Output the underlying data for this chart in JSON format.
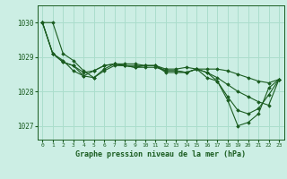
{
  "title": "Graphe pression niveau de la mer (hPa)",
  "background_color": "#cceee4",
  "grid_color": "#aaddcc",
  "line_color": "#1a5c20",
  "xlim": [
    -0.5,
    23.5
  ],
  "ylim": [
    1026.6,
    1030.5
  ],
  "yticks": [
    1027,
    1028,
    1029,
    1030
  ],
  "xticks": [
    0,
    1,
    2,
    3,
    4,
    5,
    6,
    7,
    8,
    9,
    10,
    11,
    12,
    13,
    14,
    15,
    16,
    17,
    18,
    19,
    20,
    21,
    22,
    23
  ],
  "xlabel": "Graphe pression niveau de la mer (hPa)",
  "series": [
    [
      1030.0,
      1030.0,
      1029.1,
      1028.9,
      1028.6,
      1028.4,
      1028.6,
      1028.75,
      1028.75,
      1028.75,
      1028.75,
      1028.75,
      1028.55,
      1028.55,
      1028.55,
      1028.65,
      1028.4,
      1028.3,
      1027.75,
      1027.0,
      1027.1,
      1027.35,
      1028.1,
      1028.35
    ],
    [
      1030.0,
      1029.1,
      1028.9,
      1028.6,
      1028.45,
      1028.6,
      1028.75,
      1028.8,
      1028.75,
      1028.7,
      1028.75,
      1028.75,
      1028.6,
      1028.6,
      1028.55,
      1028.65,
      1028.65,
      1028.65,
      1028.6,
      1028.5,
      1028.4,
      1028.3,
      1028.25,
      1028.35
    ],
    [
      1030.0,
      1029.1,
      1028.85,
      1028.75,
      1028.45,
      1028.4,
      1028.65,
      1028.8,
      1028.8,
      1028.8,
      1028.75,
      1028.75,
      1028.65,
      1028.65,
      1028.7,
      1028.65,
      1028.55,
      1028.4,
      1028.2,
      1028.0,
      1027.85,
      1027.7,
      1027.6,
      1028.35
    ],
    [
      1030.0,
      1029.1,
      1028.85,
      1028.75,
      1028.55,
      1028.6,
      1028.75,
      1028.8,
      1028.75,
      1028.7,
      1028.7,
      1028.7,
      1028.6,
      1028.6,
      1028.55,
      1028.65,
      1028.55,
      1028.3,
      1027.85,
      1027.45,
      1027.35,
      1027.5,
      1027.9,
      1028.35
    ]
  ]
}
